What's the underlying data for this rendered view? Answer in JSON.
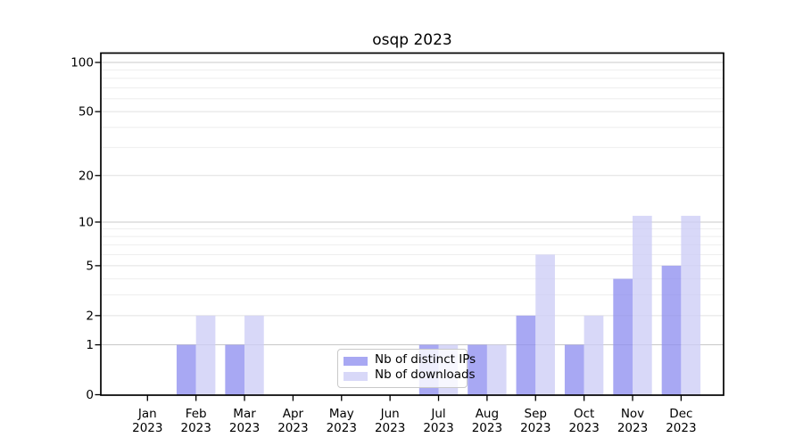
{
  "figure": {
    "title": "osqp 2023",
    "background": "#ffffff"
  },
  "chart_data": {
    "type": "bar",
    "title": "osqp 2023",
    "categories": [
      "Jan",
      "Feb",
      "Mar",
      "Apr",
      "May",
      "Jun",
      "Jul",
      "Aug",
      "Sep",
      "Oct",
      "Nov",
      "Dec"
    ],
    "category_year_label": "2023",
    "series": [
      {
        "name": "Nb of distinct IPs",
        "color": "#8f8ff0",
        "opacity": 0.78,
        "values": [
          0,
          1,
          1,
          0,
          0,
          0,
          1,
          1,
          2,
          1,
          4,
          5
        ]
      },
      {
        "name": "Nb of downloads",
        "color": "#cdcdf6",
        "opacity": 0.78,
        "values": [
          0,
          2,
          2,
          0,
          0,
          0,
          1,
          1,
          6,
          2,
          11,
          11
        ]
      }
    ],
    "yscale": "log1p",
    "ylim": [
      0,
      100
    ],
    "yticks_major": [
      0,
      1,
      2,
      5,
      10,
      20,
      50,
      100
    ],
    "yticks_decade": [
      1,
      10,
      100
    ],
    "yticks_minor": [
      3,
      4,
      6,
      7,
      8,
      9,
      30,
      40,
      60,
      70,
      80,
      90
    ],
    "grid": true,
    "legend_position": "lower center",
    "legend_swatch_colors": [
      "#a7a7f3",
      "#d8d8f8"
    ]
  },
  "colors": {
    "grid_decade": "#c8c8c8",
    "grid_major": "#e0e0e0",
    "grid_minor": "#eeeeee",
    "axis": "#000000",
    "tick_text": "#000000"
  }
}
